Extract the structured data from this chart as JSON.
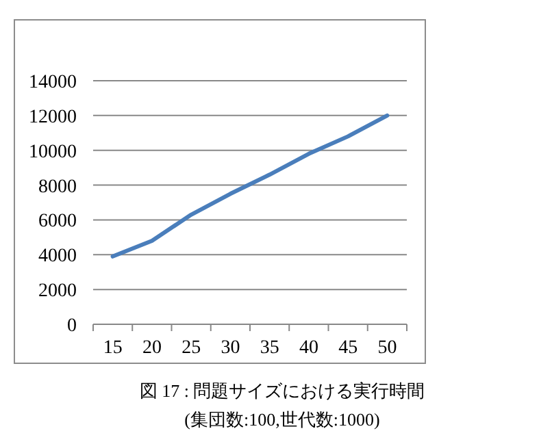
{
  "chart_data": {
    "type": "line",
    "categories": [
      "15",
      "20",
      "25",
      "30",
      "35",
      "40",
      "45",
      "50"
    ],
    "series": [
      {
        "color": "#4a7ebb",
        "values": [
          3900,
          4800,
          6300,
          7500,
          8600,
          9800,
          10800,
          12000
        ]
      }
    ],
    "ylim": [
      0,
      14000
    ],
    "yticks": [
      0,
      2000,
      4000,
      6000,
      8000,
      10000,
      12000,
      14000
    ],
    "grid": "y",
    "marker": "none",
    "annotations": [
      "図 17 : 問題サイズにおける実行時間",
      "(集団数:100,世代数:1000)"
    ]
  }
}
